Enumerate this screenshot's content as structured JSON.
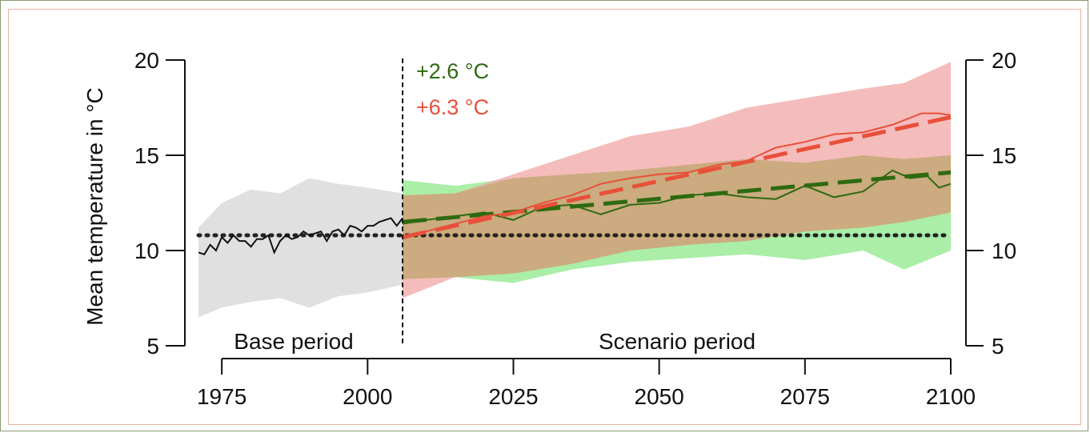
{
  "chart_data": {
    "type": "line",
    "title": "",
    "ylabel": "Mean temperature in °C",
    "xlabel": "",
    "xlim": [
      1971,
      2100
    ],
    "ylim": [
      5,
      20
    ],
    "x_ticks": [
      1975,
      2000,
      2025,
      2050,
      2075,
      2100
    ],
    "y_ticks": [
      5,
      10,
      15,
      20
    ],
    "grid": false,
    "split_year": 2006,
    "period_labels": {
      "base": "Base period",
      "scenario": "Scenario period"
    },
    "annotations": [
      {
        "text": "+2.6 °C",
        "color": "#2e6a10"
      },
      {
        "text": "+6.3 °C",
        "color": "#e8503a"
      }
    ],
    "colors": {
      "observed": "#111111",
      "low_scenario": "#2e6a10",
      "high_scenario": "#e8503a",
      "base_band": "#e0e0e0",
      "low_band": "#8ee88a",
      "high_band": "#f2a5a5",
      "overlap_band": "#c7a878",
      "baseline": "#222222"
    },
    "baseline_mean": 10.8,
    "base_band": {
      "x": [
        1971,
        1975,
        1980,
        1985,
        1990,
        1995,
        2000,
        2006
      ],
      "upper": [
        11.2,
        12.5,
        13.2,
        13.0,
        13.8,
        13.5,
        13.3,
        13.0
      ],
      "lower": [
        6.5,
        7.0,
        7.3,
        7.5,
        7.0,
        7.6,
        7.8,
        8.2
      ]
    },
    "base_mean": {
      "x": [
        1971,
        1972,
        1973,
        1974,
        1975,
        1976,
        1977,
        1978,
        1979,
        1980,
        1981,
        1982,
        1983,
        1984,
        1985,
        1986,
        1987,
        1988,
        1989,
        1990,
        1991,
        1992,
        1993,
        1994,
        1995,
        1996,
        1997,
        1998,
        1999,
        2000,
        2001,
        2002,
        2003,
        2004,
        2005,
        2006
      ],
      "y": [
        9.9,
        9.8,
        10.3,
        10.0,
        10.7,
        10.4,
        10.8,
        10.5,
        10.5,
        10.2,
        10.6,
        10.6,
        10.8,
        9.9,
        10.5,
        10.8,
        10.6,
        10.7,
        11.0,
        10.8,
        10.9,
        11.0,
        10.5,
        11.0,
        11.1,
        10.8,
        11.3,
        11.2,
        11.0,
        11.3,
        11.3,
        11.5,
        11.6,
        11.7,
        11.3,
        11.7
      ]
    },
    "series": [
      {
        "name": "+2.6 °C",
        "trend": {
          "x": [
            2006,
            2100
          ],
          "y": [
            11.5,
            14.1
          ]
        },
        "mean": {
          "x": [
            2006,
            2010,
            2015,
            2020,
            2025,
            2030,
            2035,
            2040,
            2045,
            2050,
            2055,
            2060,
            2065,
            2070,
            2075,
            2080,
            2085,
            2090,
            2093,
            2096,
            2098,
            2100
          ],
          "y": [
            11.4,
            11.6,
            11.8,
            12.0,
            11.6,
            12.3,
            12.4,
            11.9,
            12.4,
            12.5,
            12.9,
            13.0,
            12.8,
            12.7,
            13.4,
            12.8,
            13.1,
            14.2,
            13.8,
            13.9,
            13.3,
            13.5
          ]
        },
        "band": {
          "x": [
            2006,
            2015,
            2025,
            2035,
            2045,
            2055,
            2065,
            2075,
            2085,
            2092,
            2100
          ],
          "upper": [
            13.7,
            13.4,
            13.8,
            14.0,
            14.2,
            14.5,
            14.8,
            14.6,
            15.0,
            14.8,
            15.0
          ],
          "lower": [
            8.5,
            8.6,
            8.3,
            9.0,
            9.4,
            9.6,
            9.8,
            9.5,
            10.0,
            9.0,
            10.0
          ]
        }
      },
      {
        "name": "+6.3 °C",
        "trend": {
          "x": [
            2006,
            2100
          ],
          "y": [
            10.7,
            17.0
          ]
        },
        "mean": {
          "x": [
            2006,
            2010,
            2015,
            2020,
            2025,
            2030,
            2035,
            2040,
            2045,
            2050,
            2055,
            2060,
            2065,
            2070,
            2075,
            2080,
            2085,
            2090,
            2095,
            2098,
            2100
          ],
          "y": [
            10.6,
            11.0,
            11.4,
            11.8,
            12.0,
            12.5,
            12.9,
            13.5,
            13.8,
            14.0,
            14.1,
            14.5,
            14.7,
            15.4,
            15.7,
            16.1,
            16.2,
            16.6,
            17.2,
            17.2,
            17.1
          ]
        },
        "band": {
          "x": [
            2006,
            2015,
            2025,
            2035,
            2045,
            2055,
            2065,
            2075,
            2085,
            2092,
            2100
          ],
          "upper": [
            12.9,
            13.0,
            14.0,
            15.0,
            16.0,
            16.5,
            17.5,
            18.0,
            18.5,
            18.8,
            19.9
          ],
          "lower": [
            7.5,
            8.6,
            8.8,
            9.3,
            10.0,
            10.3,
            10.5,
            11.0,
            11.2,
            11.5,
            12.0
          ]
        }
      }
    ]
  }
}
